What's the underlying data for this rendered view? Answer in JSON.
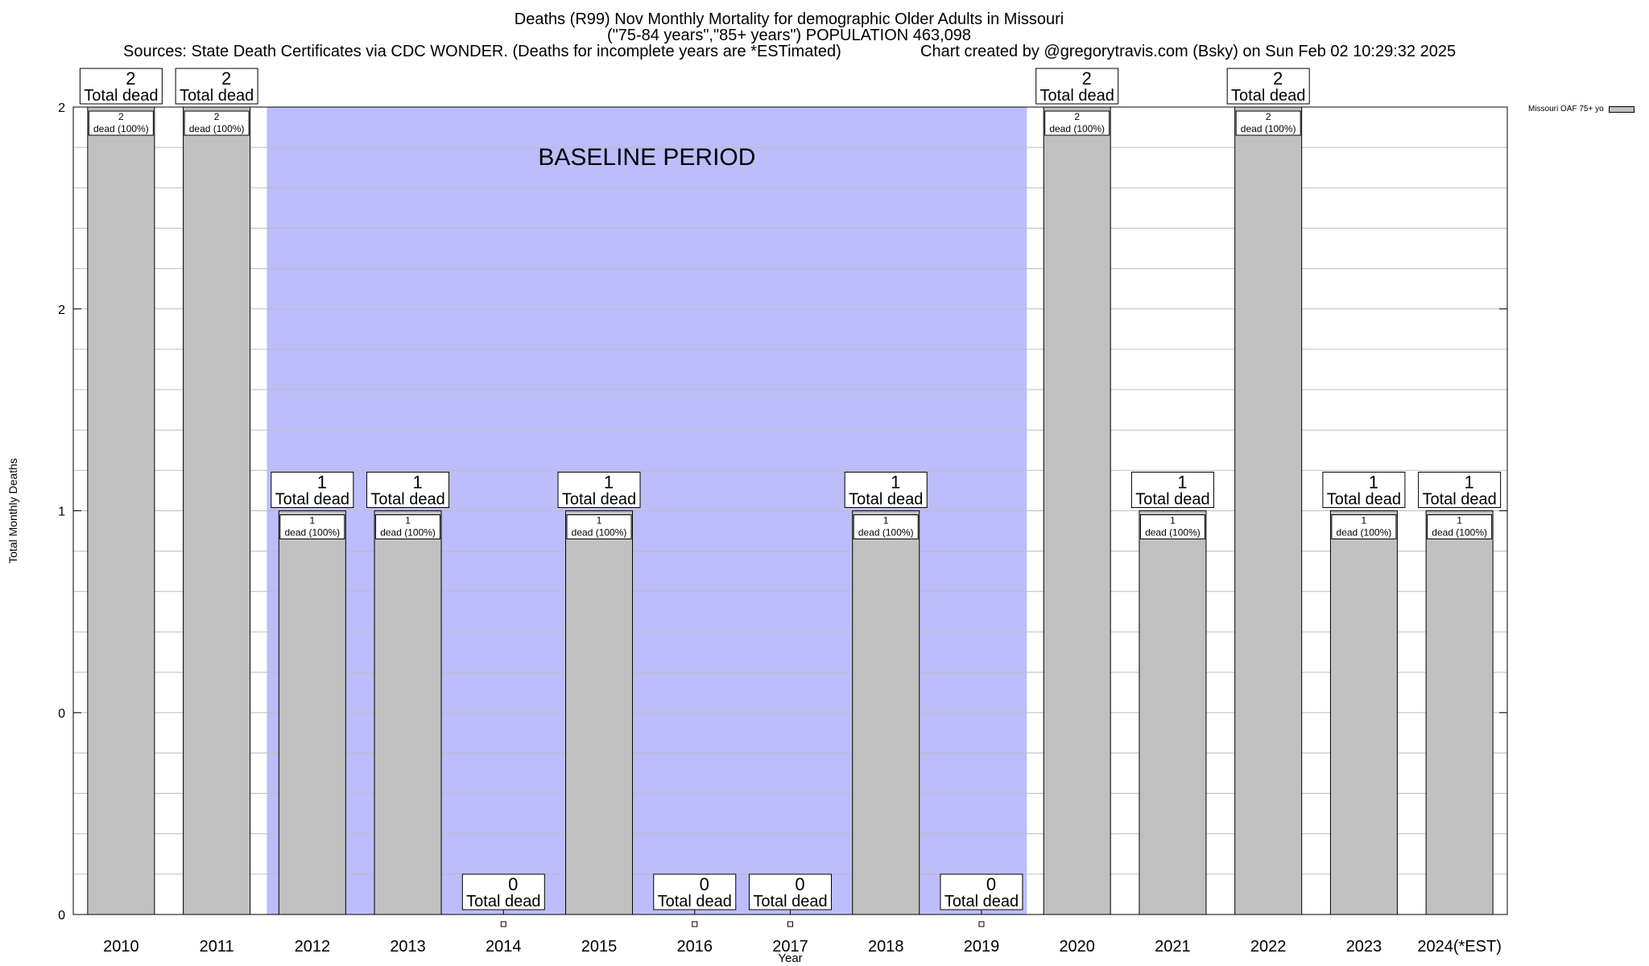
{
  "header": {
    "title": "Deaths (R99) Nov Monthly Mortality for demographic Older Adults in Missouri",
    "subtitle": "(\"75-84 years\",\"85+ years\") POPULATION 463,098",
    "sources": "Sources: State Death Certificates via CDC WONDER. (Deaths for incomplete years are *ESTimated)",
    "credit": "Chart created by @gregorytravis.com (Bsky) on Sun Feb 02 10:29:32 2025"
  },
  "chart_data": {
    "type": "bar",
    "title": "Deaths (R99) Nov Monthly Mortality for demographic Older Adults in Missouri",
    "xlabel": "Year",
    "ylabel": "Total Monthly Deaths",
    "categories": [
      "2010",
      "2011",
      "2012",
      "2013",
      "2014",
      "2015",
      "2016",
      "2017",
      "2018",
      "2019",
      "2020",
      "2021",
      "2022",
      "2023",
      "2024(*EST)"
    ],
    "series": [
      {
        "name": "Missouri OAF 75+ yo",
        "values": [
          2,
          2,
          1,
          1,
          0,
          1,
          0,
          0,
          1,
          0,
          2,
          1,
          2,
          1,
          1
        ],
        "color": "#c0c0c0"
      }
    ],
    "ylim": [
      0,
      2
    ],
    "y_ticks": [
      {
        "value": 0,
        "label": "0"
      },
      {
        "value": 0.5,
        "label": "0"
      },
      {
        "value": 1,
        "label": "1"
      },
      {
        "value": 1.5,
        "label": "2"
      },
      {
        "value": 2,
        "label": "2"
      }
    ],
    "baseline": {
      "label": "BASELINE PERIOD",
      "start": "2012",
      "end": "2019",
      "color": "#bdbdfb"
    },
    "total_labels": [
      "2\nTotal dead",
      "2\nTotal dead",
      "1\nTotal dead",
      "1\nTotal dead",
      "0\nTotal dead",
      "1\nTotal dead",
      "0\nTotal dead",
      "0\nTotal dead",
      "1\nTotal dead",
      "0\nTotal dead",
      "2\nTotal dead",
      "1\nTotal dead",
      "2\nTotal dead",
      "1\nTotal dead",
      "1\nTotal dead"
    ],
    "inner_labels": [
      "2\ndead (100%)",
      "2\ndead (100%)",
      "1\ndead (100%)",
      "1\ndead (100%)",
      "",
      "1\ndead (100%)",
      "",
      "",
      "1\ndead (100%)",
      "",
      "2\ndead (100%)",
      "1\ndead (100%)",
      "2\ndead (100%)",
      "1\ndead (100%)",
      "1\ndead (100%)"
    ],
    "grid": true,
    "legend_position": "top-right"
  },
  "legend": {
    "label": "Missouri OAF 75+ yo",
    "swatch_color": "#c0c0c0"
  }
}
